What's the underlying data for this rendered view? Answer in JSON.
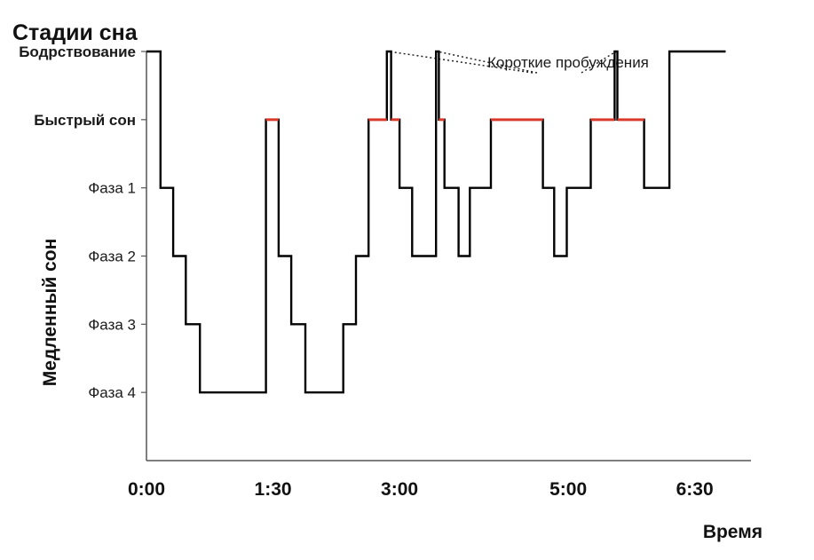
{
  "chart_data": {
    "type": "line",
    "title": "Стадии сна",
    "xlabel": "Время",
    "ylabel": "Медленный сон",
    "x_tick_labels": [
      "0:00",
      "1:30",
      "3:00",
      "5:00",
      "6:30"
    ],
    "x_tick_values": [
      0,
      90,
      180,
      300,
      390
    ],
    "xlim": [
      0,
      430
    ],
    "y_tick_labels": [
      "Бодрствование",
      "Быстрый сон",
      "Фаза 1",
      "Фаза 2",
      "Фаза 3",
      "Фаза 4"
    ],
    "y_levels": [
      5,
      4,
      3,
      2,
      1,
      0
    ],
    "ylim": [
      -1,
      5
    ],
    "annotation": "Короткие пробуждения",
    "grid": false,
    "colors": {
      "line": "#000000",
      "rem": "#d93a2b",
      "axis": "#555555"
    },
    "series": [
      {
        "points": [
          [
            0,
            5
          ],
          [
            10,
            5
          ],
          [
            10,
            3
          ],
          [
            19,
            3
          ],
          [
            19,
            2
          ],
          [
            28,
            2
          ],
          [
            28,
            1
          ],
          [
            38,
            1
          ],
          [
            38,
            0
          ],
          [
            85,
            0
          ],
          [
            85,
            4
          ],
          [
            94,
            4
          ],
          [
            94,
            2
          ],
          [
            103,
            2
          ],
          [
            103,
            1
          ],
          [
            113,
            1
          ],
          [
            113,
            0
          ],
          [
            140,
            0
          ],
          [
            140,
            1
          ],
          [
            149,
            1
          ],
          [
            149,
            2
          ],
          [
            158,
            2
          ],
          [
            158,
            4
          ],
          [
            171,
            4
          ],
          [
            171,
            5
          ],
          [
            174,
            5
          ],
          [
            174,
            4
          ],
          [
            180,
            4
          ],
          [
            180,
            3
          ],
          [
            189,
            3
          ],
          [
            189,
            2
          ],
          [
            206,
            2
          ],
          [
            206,
            5
          ],
          [
            208,
            5
          ],
          [
            208,
            4
          ],
          [
            212,
            4
          ],
          [
            212,
            3
          ],
          [
            222,
            3
          ],
          [
            222,
            2
          ],
          [
            230,
            2
          ],
          [
            230,
            3
          ],
          [
            245,
            3
          ],
          [
            245,
            4
          ],
          [
            282,
            4
          ],
          [
            282,
            3
          ],
          [
            290,
            3
          ],
          [
            290,
            2
          ],
          [
            299,
            2
          ],
          [
            299,
            3
          ],
          [
            316,
            3
          ],
          [
            316,
            4
          ],
          [
            333,
            4
          ],
          [
            333,
            5
          ],
          [
            335,
            5
          ],
          [
            335,
            4
          ],
          [
            354,
            4
          ],
          [
            354,
            3
          ],
          [
            372,
            3
          ],
          [
            372,
            5
          ],
          [
            412,
            5
          ]
        ],
        "rem_segments": [
          [
            85,
            94
          ],
          [
            158,
            171
          ],
          [
            174,
            180
          ],
          [
            208,
            212
          ],
          [
            245,
            282
          ],
          [
            316,
            333
          ],
          [
            335,
            354
          ]
        ]
      }
    ],
    "annotation_targets": [
      [
        172.5,
        5
      ],
      [
        207,
        5
      ],
      [
        334,
        5
      ]
    ]
  }
}
